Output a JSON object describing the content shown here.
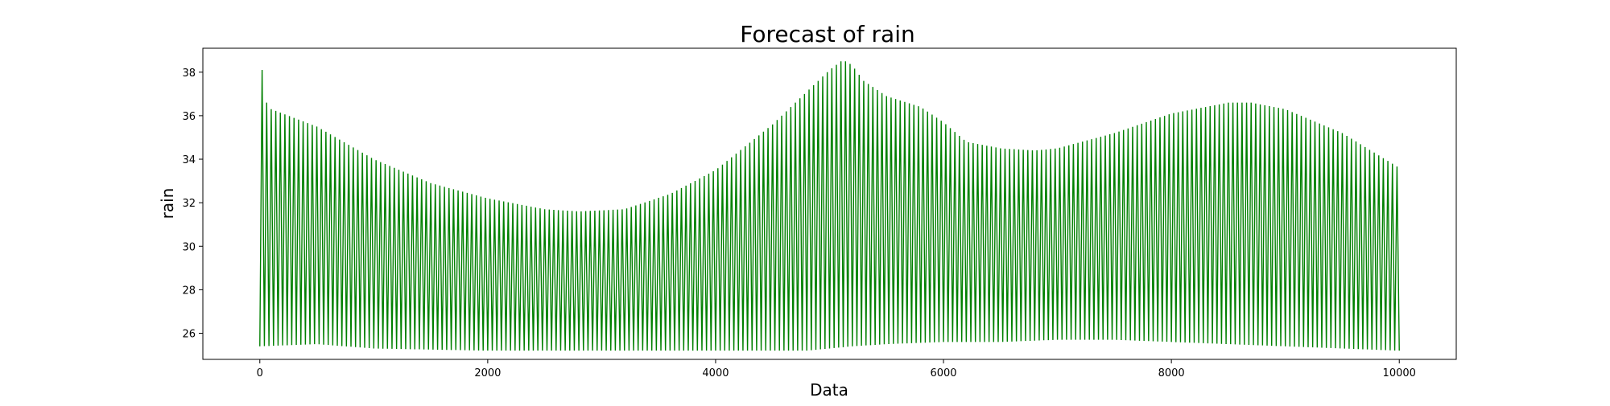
{
  "chart_data": {
    "type": "line",
    "title": "Forecast of rain",
    "xlabel": "Data",
    "ylabel": "rain",
    "xlim": [
      -500,
      10500
    ],
    "ylim": [
      24.8,
      39.1
    ],
    "x_ticks": [
      0,
      2000,
      4000,
      6000,
      8000,
      10000
    ],
    "y_ticks": [
      26,
      28,
      30,
      32,
      34,
      36,
      38
    ],
    "grid": false,
    "legend": false,
    "color": "#008000",
    "oscillation_period": 40,
    "series": [
      {
        "upper_envelope": {
          "x": [
            0,
            20,
            40,
            60,
            100,
            500,
            1000,
            1500,
            2000,
            2500,
            2800,
            3200,
            3600,
            4000,
            4500,
            4800,
            5000,
            5100,
            5150,
            5200,
            5300,
            5500,
            5800,
            6000,
            6200,
            6500,
            6800,
            7000,
            7500,
            8000,
            8500,
            8700,
            9000,
            9500,
            10000
          ],
          "y": [
            25.2,
            38.1,
            37.9,
            36.6,
            36.3,
            35.5,
            34.0,
            32.9,
            32.2,
            31.7,
            31.6,
            31.7,
            32.4,
            33.5,
            35.6,
            37.1,
            38.1,
            38.5,
            38.5,
            38.3,
            37.6,
            36.9,
            36.4,
            35.7,
            34.8,
            34.5,
            34.4,
            34.5,
            35.2,
            36.1,
            36.6,
            36.6,
            36.3,
            35.2,
            33.6
          ]
        },
        "lower_envelope": {
          "x": [
            0,
            500,
            1000,
            2000,
            3000,
            4000,
            4800,
            5000,
            5200,
            5500,
            6000,
            6500,
            7000,
            7500,
            8000,
            8500,
            9000,
            9500,
            10000
          ],
          "y": [
            25.4,
            25.5,
            25.3,
            25.2,
            25.2,
            25.2,
            25.2,
            25.3,
            25.4,
            25.5,
            25.6,
            25.6,
            25.7,
            25.7,
            25.6,
            25.5,
            25.4,
            25.3,
            25.2
          ]
        }
      }
    ]
  }
}
